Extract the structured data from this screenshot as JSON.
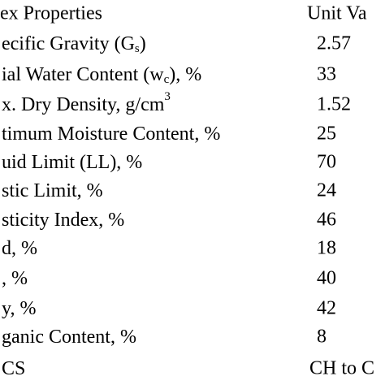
{
  "table": {
    "header": [
      "ex Properties",
      "Unit Va"
    ],
    "rows": [
      {
        "pre": "ecific Gravity (G",
        "sub": "s",
        "post": ")",
        "value": "2.57"
      },
      {
        "pre": "ial Water Content (w",
        "sub": "c",
        "post": "), %",
        "value": "33"
      },
      {
        "pre": "x. Dry Density, g/cm",
        "sup": "3",
        "value": "1.52"
      },
      {
        "pre": "timum Moisture Content, %",
        "value": "25"
      },
      {
        "pre": "uid Limit (LL), %",
        "value": "70"
      },
      {
        "pre": "stic Limit, %",
        "value": "24"
      },
      {
        "pre": "sticity Index, %",
        "value": "46"
      },
      {
        "pre": "d, %",
        "value": "18"
      },
      {
        "pre": ", %",
        "value": "40"
      },
      {
        "pre": "y, %",
        "value": "42"
      },
      {
        "pre": "ganic Content, %",
        "value": "8"
      },
      {
        "pre": "CS",
        "value": "CH to C"
      }
    ]
  }
}
